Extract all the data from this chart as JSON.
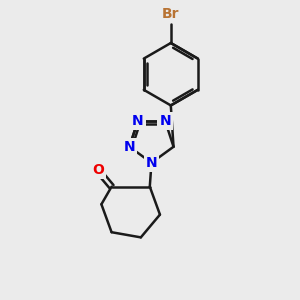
{
  "background_color": "#ebebeb",
  "bond_color": "#1a1a1a",
  "bond_width": 1.8,
  "atom_labels": {
    "Br": {
      "color": "#b87333",
      "fontsize": 10,
      "fontweight": "bold"
    },
    "N": {
      "color": "#0000ee",
      "fontsize": 10,
      "fontweight": "bold"
    },
    "O": {
      "color": "#ee0000",
      "fontsize": 10,
      "fontweight": "bold"
    }
  },
  "figsize": [
    3.0,
    3.0
  ],
  "dpi": 100
}
